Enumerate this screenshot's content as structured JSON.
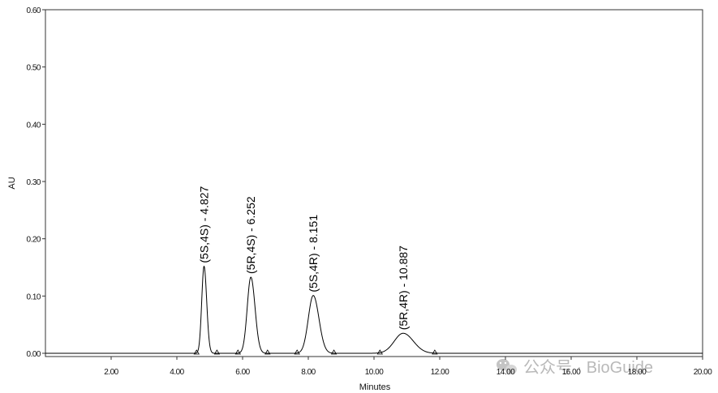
{
  "chart_data": {
    "type": "line",
    "xlabel": "Minutes",
    "ylabel": "AU",
    "xlim": [
      0,
      20
    ],
    "ylim": [
      -0.01,
      0.6
    ],
    "xticks": [
      {
        "value": 2,
        "label": "2.00"
      },
      {
        "value": 4,
        "label": "4.00"
      },
      {
        "value": 6,
        "label": "6.00"
      },
      {
        "value": 8,
        "label": "8.00"
      },
      {
        "value": 10,
        "label": "10.00"
      },
      {
        "value": 12,
        "label": "12.00"
      },
      {
        "value": 14,
        "label": "14.00"
      },
      {
        "value": 16,
        "label": "16.00"
      },
      {
        "value": 18,
        "label": "18.00"
      },
      {
        "value": 20,
        "label": "20.00"
      }
    ],
    "yticks": [
      {
        "value": 0.0,
        "label": "0.00"
      },
      {
        "value": 0.1,
        "label": "0.10"
      },
      {
        "value": 0.2,
        "label": "0.20"
      },
      {
        "value": 0.3,
        "label": "0.30"
      },
      {
        "value": 0.4,
        "label": "0.40"
      },
      {
        "value": 0.5,
        "label": "0.50"
      },
      {
        "value": 0.6,
        "label": "0.60"
      }
    ],
    "grid": false,
    "peaks": [
      {
        "label": "(5S,4S) - 4.827",
        "retention_time": 4.827,
        "height": 0.152,
        "width": 0.07,
        "start": 4.6,
        "end": 5.22
      },
      {
        "label": "(5R,4S) - 6.252",
        "retention_time": 6.252,
        "height": 0.133,
        "width": 0.11,
        "start": 5.86,
        "end": 6.76
      },
      {
        "label": "(5S,4R) - 8.151",
        "retention_time": 8.151,
        "height": 0.101,
        "width": 0.15,
        "start": 7.66,
        "end": 8.78
      },
      {
        "label": "(5R,4R) - 10.887",
        "retention_time": 10.887,
        "height": 0.035,
        "width": 0.27,
        "start": 10.18,
        "end": 11.85
      }
    ]
  },
  "watermark": {
    "text": "公众号 · BioGuide",
    "icon": "wechat-icon"
  }
}
